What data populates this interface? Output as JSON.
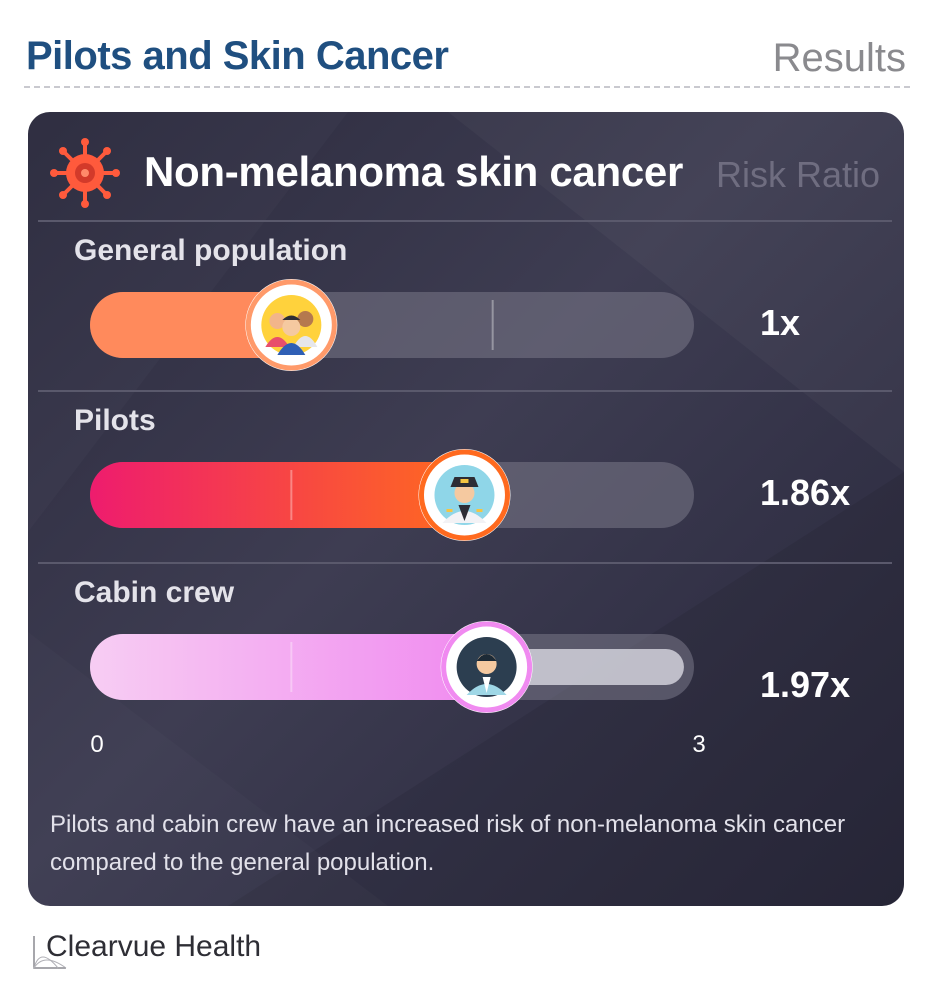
{
  "header": {
    "title": "Pilots and Skin Cancer",
    "section": "Results"
  },
  "card": {
    "title": "Non-melanoma skin cancer",
    "metric_label": "Risk Ratio",
    "icon": "virus-icon"
  },
  "chart_data": {
    "type": "bar",
    "orientation": "horizontal",
    "title": "Non-melanoma skin cancer",
    "value_label": "Risk Ratio",
    "categories": [
      "General population",
      "Pilots",
      "Cabin crew"
    ],
    "values": [
      1,
      1.86,
      1.97
    ],
    "value_labels": [
      "1x",
      "1.86x",
      "1.97x"
    ],
    "xlim": [
      0,
      3
    ],
    "tick_labels": [
      "0",
      "3"
    ],
    "gridlines": [
      1,
      2
    ],
    "colors": [
      [
        "#ff8a5c",
        "#ff8a5c"
      ],
      [
        "#ee1c6e",
        "#ff6a1f"
      ],
      [
        "#f7cdf3",
        "#f08af0"
      ]
    ],
    "marker_border_colors": [
      "#ff9a6a",
      "#ff6a1f",
      "#f08af0"
    ],
    "marker_icons": [
      "people-group-icon",
      "pilot-icon",
      "cabin-crew-icon"
    ]
  },
  "footnote": "Pilots and cabin crew have an increased risk of non-melanoma skin cancer compared to the general population.",
  "brand": {
    "name": "Clearvue Health"
  }
}
